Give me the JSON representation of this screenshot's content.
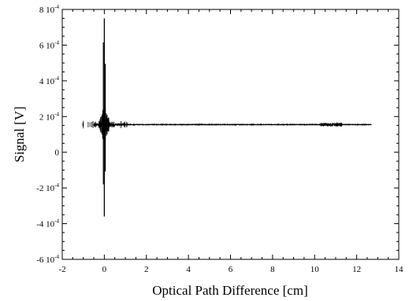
{
  "chart_data": {
    "type": "line",
    "title": "",
    "xlabel": "Optical Path Difference [cm]",
    "ylabel": "Signal [V]",
    "xlim": [
      -2,
      14
    ],
    "ylim": [
      -0.0006,
      0.0008
    ],
    "x_ticks": [
      -2,
      0,
      2,
      4,
      6,
      8,
      10,
      12,
      14
    ],
    "x_tick_labels": [
      "-2",
      "0",
      "2",
      "4",
      "6",
      "8",
      "10",
      "12",
      "14"
    ],
    "y_ticks": [
      {
        "value": 0.0008,
        "mantissa": "8 10",
        "exponent": "-4"
      },
      {
        "value": 0.0006,
        "mantissa": "6 10",
        "exponent": "-4"
      },
      {
        "value": 0.0004,
        "mantissa": "4 10",
        "exponent": "-4"
      },
      {
        "value": 0.0002,
        "mantissa": "2 10",
        "exponent": "-4"
      },
      {
        "value": 0,
        "mantissa": "0",
        "exponent": ""
      },
      {
        "value": -0.0002,
        "mantissa": "-2 10",
        "exponent": "-4"
      },
      {
        "value": -0.0004,
        "mantissa": "-4 10",
        "exponent": "-4"
      },
      {
        "value": -0.0006,
        "mantissa": "-6 10",
        "exponent": "-4"
      }
    ],
    "grid": false,
    "series": [
      {
        "color": "#000000",
        "baseline": 0.000155,
        "x_start": -0.5,
        "x_end": 12.7,
        "centerburst_x": 0,
        "peak_max": 0.00075,
        "peak_min": -0.00036,
        "secondary_burst_x": [
          10.3,
          11.3
        ]
      }
    ]
  }
}
